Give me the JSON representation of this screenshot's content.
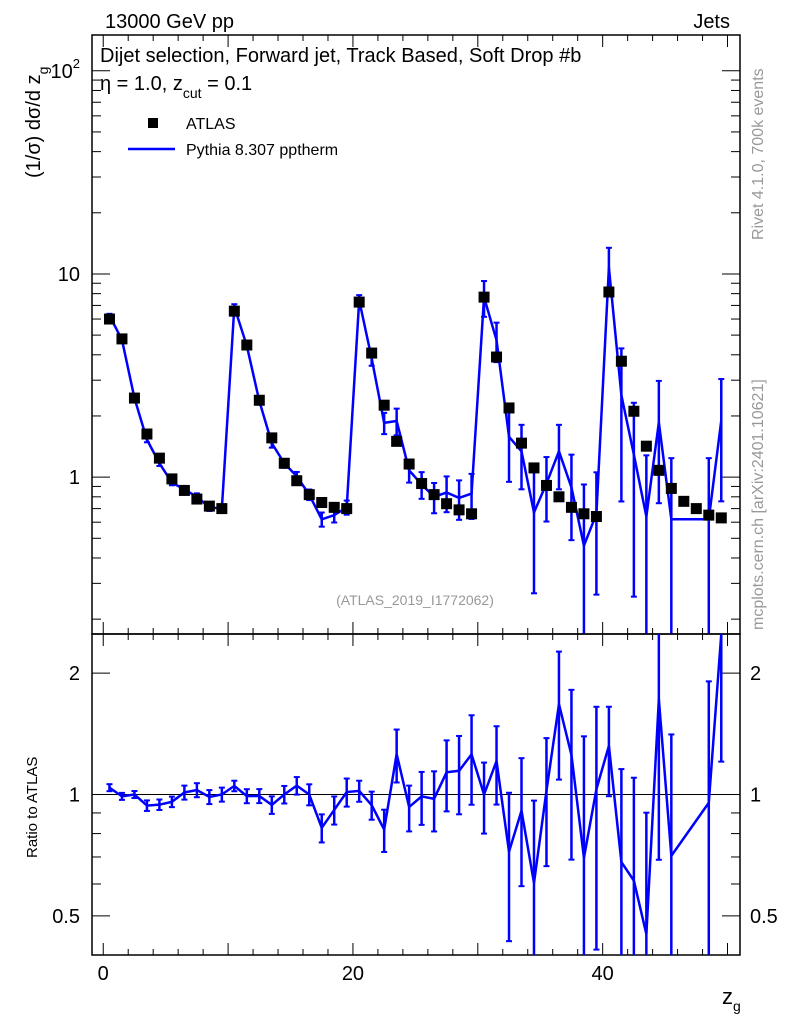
{
  "header": {
    "energy": "13000 GeV pp",
    "process": "Jets",
    "title_main": "Dijet selection, Forward jet, Track Based, Soft Drop #b",
    "title_tail": "η = 1.0, z",
    "title_sub": "cut",
    "title_end": " = 0.1"
  },
  "side": {
    "rivet": "Rivet 4.1.0,  700k events",
    "mcplots": "mcplots.cern.ch [arXiv:2401.10621]"
  },
  "colors": {
    "atlas": "#000000",
    "pythia": "#0000ff"
  },
  "chart_data": [
    {
      "type": "scatter+line",
      "title": "Dijet selection, Forward jet, Track Based, Soft Drop #beta = 1.0, z_cut = 0.1",
      "analysis": "(ATLAS_2019_I1772062)",
      "xlabel": "z",
      "xlabel_sub": "g",
      "ylabel": "(1/σ) dσ/d z",
      "ylabel_sub": "g",
      "yscale": "log",
      "xlim": [
        -0.9,
        51
      ],
      "ylim": [
        0.169,
        150
      ],
      "xticks": [
        "0",
        "20",
        "40"
      ],
      "xtick_values": [
        0,
        20,
        40
      ],
      "yticks": [
        "10",
        "10",
        "1"
      ],
      "ytick_sup": [
        "2",
        "",
        ""
      ],
      "ytick_values": [
        100,
        10,
        1
      ],
      "legend": [
        "ATLAS",
        "Pythia 8.307 pptherm"
      ],
      "legend_position": "top-left",
      "x": [
        0.5,
        1.5,
        2.5,
        3.5,
        4.5,
        5.5,
        6.5,
        7.5,
        8.5,
        9.5,
        10.5,
        11.5,
        12.5,
        13.5,
        14.5,
        15.5,
        16.5,
        17.5,
        18.5,
        19.5,
        20.5,
        21.5,
        22.5,
        23.5,
        24.5,
        25.5,
        26.5,
        27.5,
        28.5,
        29.5,
        30.5,
        31.5,
        32.5,
        33.5,
        34.5,
        35.5,
        36.5,
        37.5,
        38.5,
        39.5,
        40.5,
        41.5,
        42.5,
        43.5,
        44.5,
        45.5,
        46.5,
        47.5,
        48.5,
        49.5
      ],
      "series": [
        {
          "name": "ATLAS",
          "values": [
            6.0,
            4.79,
            2.45,
            1.63,
            1.24,
            0.98,
            0.86,
            0.78,
            0.72,
            0.7,
            6.56,
            4.47,
            2.39,
            1.56,
            1.17,
            0.96,
            0.82,
            0.75,
            0.71,
            0.7,
            7.27,
            4.08,
            2.26,
            1.5,
            1.16,
            0.93,
            0.82,
            0.74,
            0.69,
            0.66,
            7.69,
            3.9,
            2.19,
            1.47,
            1.11,
            0.91,
            0.8,
            0.71,
            0.66,
            0.64,
            8.15,
            3.72,
            2.11,
            1.42,
            1.08,
            0.88,
            0.76,
            0.7,
            0.65,
            0.63
          ]
        },
        {
          "name": "Pythia 8.307 pptherm",
          "values": [
            6.24,
            4.74,
            2.45,
            1.53,
            1.17,
            0.94,
            0.87,
            0.8,
            0.71,
            0.7,
            6.89,
            4.43,
            2.37,
            1.47,
            1.17,
            1.01,
            0.82,
            0.62,
            0.65,
            0.71,
            7.42,
            3.84,
            1.85,
            1.89,
            1.08,
            0.92,
            0.8,
            0.84,
            0.79,
            0.83,
            7.69,
            4.72,
            1.58,
            1.34,
            0.67,
            0.93,
            1.34,
            0.89,
            0.46,
            0.66,
            10.76,
            2.53,
            1.29,
            0.64,
            1.86,
            0.62,
            null,
            null,
            0.62,
            1.9
          ],
          "rel_errors": [
            0.02,
            0.02,
            0.02,
            0.03,
            0.03,
            0.03,
            0.04,
            0.04,
            0.04,
            0.04,
            0.03,
            0.04,
            0.04,
            0.05,
            0.05,
            0.05,
            0.06,
            0.08,
            0.08,
            0.08,
            0.06,
            0.08,
            0.12,
            0.15,
            0.13,
            0.15,
            0.17,
            0.2,
            0.22,
            0.25,
            0.2,
            0.22,
            0.4,
            0.35,
            0.6,
            0.35,
            0.35,
            0.45,
            1.0,
            0.6,
            0.25,
            0.7,
            0.8,
            1.0,
            0.6,
            1.0,
            0,
            0,
            1.0,
            0.6
          ]
        }
      ]
    },
    {
      "type": "line",
      "ylabel": "Ratio to ATLAS",
      "yscale": "log",
      "ylim": [
        0.4,
        2.5
      ],
      "yticks": [
        "2",
        "1",
        "0.5"
      ],
      "ytick_values": [
        2,
        1,
        0.5
      ],
      "reference_line": 1
    }
  ]
}
